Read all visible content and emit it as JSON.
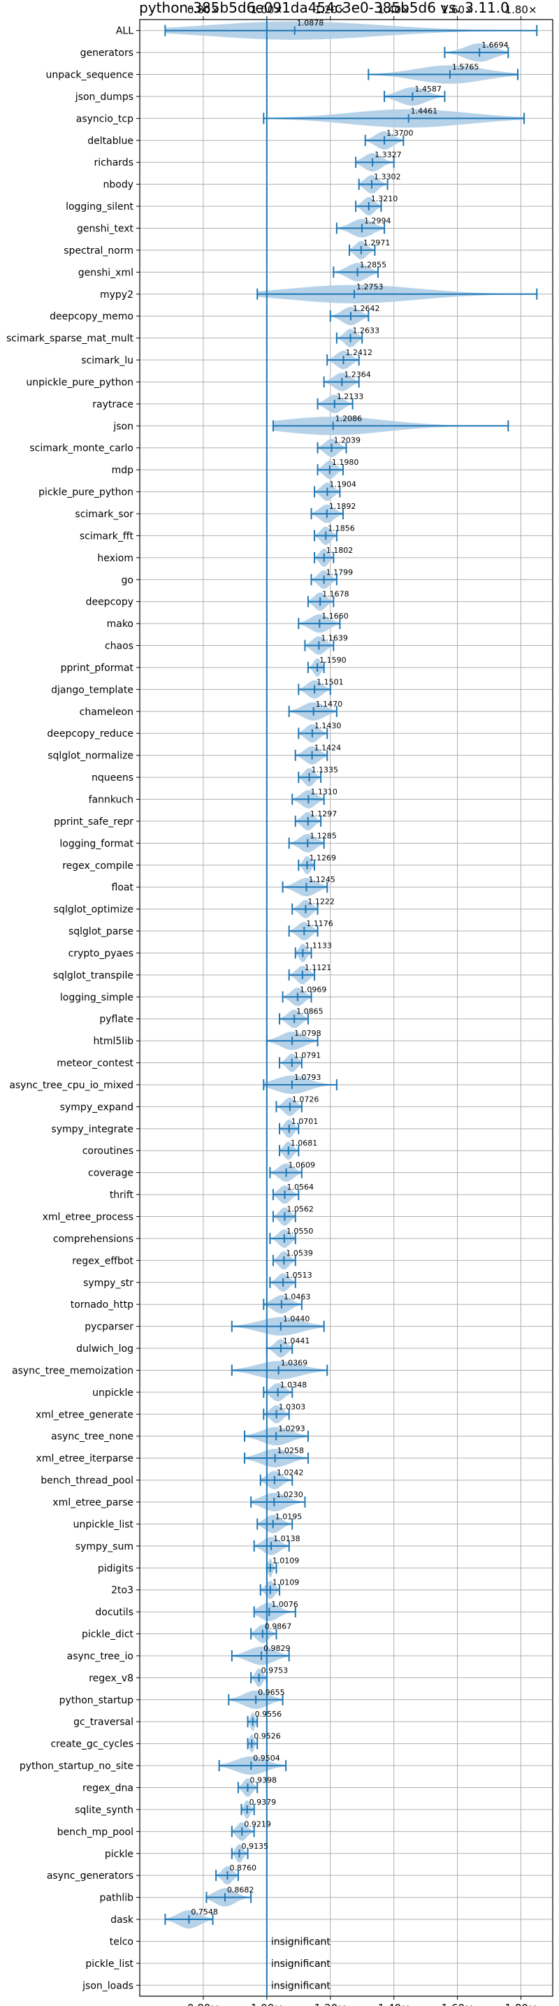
{
  "chart_data": {
    "type": "violin",
    "title": "python-385b5d6e091da454c3e0-385b5d6 vs. 3.11.0",
    "xlim": [
      0.6,
      1.9
    ],
    "xticks": [
      0.8,
      1.0,
      1.2,
      1.4,
      1.6,
      1.8
    ],
    "xtick_labels": [
      "0.80×",
      "1.00×",
      "1.20×",
      "1.40×",
      "1.60×",
      "1.80×"
    ],
    "reference_x": 1.0,
    "grid": true,
    "colors": {
      "violin": "#aecde7",
      "line": "#1f77b4",
      "grid": "#b0b0b0"
    },
    "benchmarks": [
      {
        "name": "ALL",
        "value": 1.0878,
        "label": "1.0878",
        "min": 0.68,
        "max": 1.85
      },
      {
        "name": "generators",
        "value": 1.6694,
        "label": "1.6694",
        "min": 1.56,
        "max": 1.76
      },
      {
        "name": "unpack_sequence",
        "value": 1.5765,
        "label": "1.5765",
        "min": 1.32,
        "max": 1.79
      },
      {
        "name": "json_dumps",
        "value": 1.4587,
        "label": "1.4587",
        "min": 1.37,
        "max": 1.56
      },
      {
        "name": "asyncio_tcp",
        "value": 1.4461,
        "label": "1.4461",
        "min": 0.99,
        "max": 1.81
      },
      {
        "name": "deltablue",
        "value": 1.37,
        "label": "1.3700",
        "min": 1.31,
        "max": 1.43
      },
      {
        "name": "richards",
        "value": 1.3327,
        "label": "1.3327",
        "min": 1.28,
        "max": 1.4
      },
      {
        "name": "nbody",
        "value": 1.3302,
        "label": "1.3302",
        "min": 1.29,
        "max": 1.38
      },
      {
        "name": "logging_silent",
        "value": 1.321,
        "label": "1.3210",
        "min": 1.28,
        "max": 1.36
      },
      {
        "name": "genshi_text",
        "value": 1.2994,
        "label": "1.2994",
        "min": 1.22,
        "max": 1.37
      },
      {
        "name": "spectral_norm",
        "value": 1.2971,
        "label": "1.2971",
        "min": 1.26,
        "max": 1.34
      },
      {
        "name": "genshi_xml",
        "value": 1.2855,
        "label": "1.2855",
        "min": 1.21,
        "max": 1.35
      },
      {
        "name": "mypy2",
        "value": 1.2753,
        "label": "1.2753",
        "min": 0.97,
        "max": 1.85
      },
      {
        "name": "deepcopy_memo",
        "value": 1.2642,
        "label": "1.2642",
        "min": 1.2,
        "max": 1.32
      },
      {
        "name": "scimark_sparse_mat_mult",
        "value": 1.2633,
        "label": "1.2633",
        "min": 1.22,
        "max": 1.3
      },
      {
        "name": "scimark_lu",
        "value": 1.2412,
        "label": "1.2412",
        "min": 1.19,
        "max": 1.29
      },
      {
        "name": "unpickle_pure_python",
        "value": 1.2364,
        "label": "1.2364",
        "min": 1.18,
        "max": 1.29
      },
      {
        "name": "raytrace",
        "value": 1.2133,
        "label": "1.2133",
        "min": 1.16,
        "max": 1.27
      },
      {
        "name": "json",
        "value": 1.2086,
        "label": "1.2086",
        "min": 1.02,
        "max": 1.76
      },
      {
        "name": "scimark_monte_carlo",
        "value": 1.2039,
        "label": "1.2039",
        "min": 1.16,
        "max": 1.25
      },
      {
        "name": "mdp",
        "value": 1.198,
        "label": "1.1980",
        "min": 1.16,
        "max": 1.24
      },
      {
        "name": "pickle_pure_python",
        "value": 1.1904,
        "label": "1.1904",
        "min": 1.15,
        "max": 1.23
      },
      {
        "name": "scimark_sor",
        "value": 1.1892,
        "label": "1.1892",
        "min": 1.14,
        "max": 1.24
      },
      {
        "name": "scimark_fft",
        "value": 1.1856,
        "label": "1.1856",
        "min": 1.15,
        "max": 1.22
      },
      {
        "name": "hexiom",
        "value": 1.1802,
        "label": "1.1802",
        "min": 1.15,
        "max": 1.21
      },
      {
        "name": "go",
        "value": 1.1799,
        "label": "1.1799",
        "min": 1.14,
        "max": 1.22
      },
      {
        "name": "deepcopy",
        "value": 1.1678,
        "label": "1.1678",
        "min": 1.13,
        "max": 1.21
      },
      {
        "name": "mako",
        "value": 1.166,
        "label": "1.1660",
        "min": 1.1,
        "max": 1.23
      },
      {
        "name": "chaos",
        "value": 1.1639,
        "label": "1.1639",
        "min": 1.12,
        "max": 1.21
      },
      {
        "name": "pprint_pformat",
        "value": 1.159,
        "label": "1.1590",
        "min": 1.13,
        "max": 1.18
      },
      {
        "name": "django_template",
        "value": 1.1501,
        "label": "1.1501",
        "min": 1.1,
        "max": 1.2
      },
      {
        "name": "chameleon",
        "value": 1.147,
        "label": "1.1470",
        "min": 1.07,
        "max": 1.22
      },
      {
        "name": "deepcopy_reduce",
        "value": 1.143,
        "label": "1.1430",
        "min": 1.1,
        "max": 1.19
      },
      {
        "name": "sqlglot_normalize",
        "value": 1.1424,
        "label": "1.1424",
        "min": 1.09,
        "max": 1.19
      },
      {
        "name": "nqueens",
        "value": 1.1335,
        "label": "1.1335",
        "min": 1.1,
        "max": 1.17
      },
      {
        "name": "fannkuch",
        "value": 1.131,
        "label": "1.1310",
        "min": 1.08,
        "max": 1.18
      },
      {
        "name": "pprint_safe_repr",
        "value": 1.1297,
        "label": "1.1297",
        "min": 1.09,
        "max": 1.17
      },
      {
        "name": "logging_format",
        "value": 1.1285,
        "label": "1.1285",
        "min": 1.07,
        "max": 1.18
      },
      {
        "name": "regex_compile",
        "value": 1.1269,
        "label": "1.1269",
        "min": 1.1,
        "max": 1.15
      },
      {
        "name": "float",
        "value": 1.1245,
        "label": "1.1245",
        "min": 1.05,
        "max": 1.19
      },
      {
        "name": "sqlglot_optimize",
        "value": 1.1222,
        "label": "1.1222",
        "min": 1.08,
        "max": 1.16
      },
      {
        "name": "sqlglot_parse",
        "value": 1.1176,
        "label": "1.1176",
        "min": 1.07,
        "max": 1.16
      },
      {
        "name": "crypto_pyaes",
        "value": 1.1133,
        "label": "1.1133",
        "min": 1.09,
        "max": 1.14
      },
      {
        "name": "sqlglot_transpile",
        "value": 1.1121,
        "label": "1.1121",
        "min": 1.07,
        "max": 1.15
      },
      {
        "name": "logging_simple",
        "value": 1.0969,
        "label": "1.0969",
        "min": 1.05,
        "max": 1.14
      },
      {
        "name": "pyflate",
        "value": 1.0865,
        "label": "1.0865",
        "min": 1.04,
        "max": 1.13
      },
      {
        "name": "html5lib",
        "value": 1.0798,
        "label": "1.0798",
        "min": 1.0,
        "max": 1.16
      },
      {
        "name": "meteor_contest",
        "value": 1.0791,
        "label": "1.0791",
        "min": 1.04,
        "max": 1.11
      },
      {
        "name": "async_tree_cpu_io_mixed",
        "value": 1.0793,
        "label": "1.0793",
        "min": 0.99,
        "max": 1.22
      },
      {
        "name": "sympy_expand",
        "value": 1.0726,
        "label": "1.0726",
        "min": 1.03,
        "max": 1.11
      },
      {
        "name": "sympy_integrate",
        "value": 1.0701,
        "label": "1.0701",
        "min": 1.04,
        "max": 1.1
      },
      {
        "name": "coroutines",
        "value": 1.0681,
        "label": "1.0681",
        "min": 1.04,
        "max": 1.1
      },
      {
        "name": "coverage",
        "value": 1.0609,
        "label": "1.0609",
        "min": 1.01,
        "max": 1.11
      },
      {
        "name": "thrift",
        "value": 1.0564,
        "label": "1.0564",
        "min": 1.02,
        "max": 1.1
      },
      {
        "name": "xml_etree_process",
        "value": 1.0562,
        "label": "1.0562",
        "min": 1.02,
        "max": 1.09
      },
      {
        "name": "comprehensions",
        "value": 1.055,
        "label": "1.0550",
        "min": 1.01,
        "max": 1.09
      },
      {
        "name": "regex_effbot",
        "value": 1.0539,
        "label": "1.0539",
        "min": 1.02,
        "max": 1.09
      },
      {
        "name": "sympy_str",
        "value": 1.0513,
        "label": "1.0513",
        "min": 1.01,
        "max": 1.09
      },
      {
        "name": "tornado_http",
        "value": 1.0463,
        "label": "1.0463",
        "min": 0.99,
        "max": 1.11
      },
      {
        "name": "pycparser",
        "value": 1.044,
        "label": "1.0440",
        "min": 0.89,
        "max": 1.18
      },
      {
        "name": "dulwich_log",
        "value": 1.0441,
        "label": "1.0441",
        "min": 1.0,
        "max": 1.08
      },
      {
        "name": "async_tree_memoization",
        "value": 1.0369,
        "label": "1.0369",
        "min": 0.89,
        "max": 1.19
      },
      {
        "name": "unpickle",
        "value": 1.0348,
        "label": "1.0348",
        "min": 0.99,
        "max": 1.08
      },
      {
        "name": "xml_etree_generate",
        "value": 1.0303,
        "label": "1.0303",
        "min": 0.99,
        "max": 1.07
      },
      {
        "name": "async_tree_none",
        "value": 1.0293,
        "label": "1.0293",
        "min": 0.93,
        "max": 1.13
      },
      {
        "name": "xml_etree_iterparse",
        "value": 1.0258,
        "label": "1.0258",
        "min": 0.93,
        "max": 1.13
      },
      {
        "name": "bench_thread_pool",
        "value": 1.0242,
        "label": "1.0242",
        "min": 0.98,
        "max": 1.08
      },
      {
        "name": "xml_etree_parse",
        "value": 1.023,
        "label": "1.0230",
        "min": 0.95,
        "max": 1.12
      },
      {
        "name": "unpickle_list",
        "value": 1.0195,
        "label": "1.0195",
        "min": 0.97,
        "max": 1.08
      },
      {
        "name": "sympy_sum",
        "value": 1.0138,
        "label": "1.0138",
        "min": 0.96,
        "max": 1.07
      },
      {
        "name": "pidigits",
        "value": 1.0109,
        "label": "1.0109",
        "min": 1.0,
        "max": 1.03
      },
      {
        "name": "2to3",
        "value": 1.0109,
        "label": "1.0109",
        "min": 0.98,
        "max": 1.04
      },
      {
        "name": "docutils",
        "value": 1.0076,
        "label": "1.0076",
        "min": 0.96,
        "max": 1.09
      },
      {
        "name": "pickle_dict",
        "value": 0.9867,
        "label": "0.9867",
        "min": 0.95,
        "max": 1.03
      },
      {
        "name": "async_tree_io",
        "value": 0.9829,
        "label": "0.9829",
        "min": 0.89,
        "max": 1.07
      },
      {
        "name": "regex_v8",
        "value": 0.9753,
        "label": "0.9753",
        "min": 0.95,
        "max": 1.0
      },
      {
        "name": "python_startup",
        "value": 0.9655,
        "label": "0.9655",
        "min": 0.88,
        "max": 1.05
      },
      {
        "name": "gc_traversal",
        "value": 0.9556,
        "label": "0.9556",
        "min": 0.94,
        "max": 0.97
      },
      {
        "name": "create_gc_cycles",
        "value": 0.9526,
        "label": "0.9526",
        "min": 0.94,
        "max": 0.97
      },
      {
        "name": "python_startup_no_site",
        "value": 0.9504,
        "label": "0.9504",
        "min": 0.85,
        "max": 1.06
      },
      {
        "name": "regex_dna",
        "value": 0.9398,
        "label": "0.9398",
        "min": 0.91,
        "max": 0.97
      },
      {
        "name": "sqlite_synth",
        "value": 0.9379,
        "label": "0.9379",
        "min": 0.92,
        "max": 0.96
      },
      {
        "name": "bench_mp_pool",
        "value": 0.9219,
        "label": "0.9219",
        "min": 0.89,
        "max": 0.96
      },
      {
        "name": "pickle",
        "value": 0.9135,
        "label": "0.9135",
        "min": 0.89,
        "max": 0.94
      },
      {
        "name": "async_generators",
        "value": 0.876,
        "label": "0.8760",
        "min": 0.84,
        "max": 0.91
      },
      {
        "name": "pathlib",
        "value": 0.8682,
        "label": "0.8682",
        "min": 0.81,
        "max": 0.95
      },
      {
        "name": "dask",
        "value": 0.7548,
        "label": "0.7548",
        "min": 0.68,
        "max": 0.83
      },
      {
        "name": "telco",
        "value": null,
        "label": "insignificant"
      },
      {
        "name": "pickle_list",
        "value": null,
        "label": "insignificant"
      },
      {
        "name": "json_loads",
        "value": null,
        "label": "insignificant"
      }
    ]
  }
}
